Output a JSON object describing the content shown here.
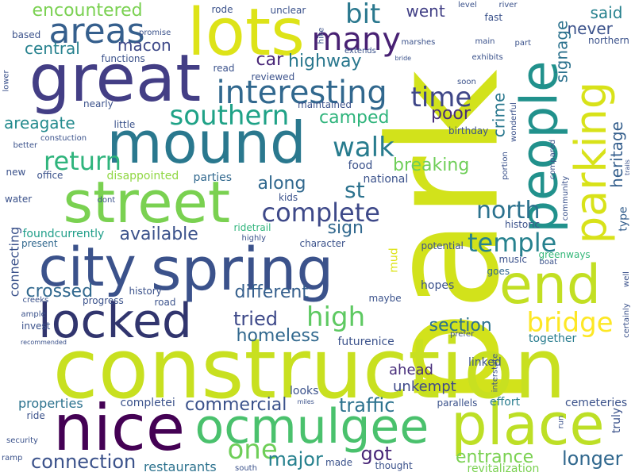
{
  "words": [
    {
      "text": "park",
      "color": "#d2e21b",
      "vertical": true
    },
    {
      "text": "construction",
      "color": "#c8e020",
      "vertical": false
    },
    {
      "text": "great",
      "color": "#433e85",
      "vertical": false
    },
    {
      "text": "lots",
      "color": "#dde318",
      "vertical": false
    },
    {
      "text": "mound",
      "color": "#2a788e",
      "vertical": false
    },
    {
      "text": "spring",
      "color": "#3b528b",
      "vertical": false
    },
    {
      "text": "city",
      "color": "#3b528b",
      "vertical": false
    },
    {
      "text": "street",
      "color": "#7ad151",
      "vertical": false
    },
    {
      "text": "nice",
      "color": "#440154",
      "vertical": false
    },
    {
      "text": "place",
      "color": "#bddf26",
      "vertical": false
    },
    {
      "text": "ocmulgee",
      "color": "#4ac16d",
      "vertical": false
    },
    {
      "text": "people",
      "color": "#21918c",
      "vertical": true
    },
    {
      "text": "end",
      "color": "#c2df23",
      "vertical": false
    },
    {
      "text": "locked",
      "color": "#31356e",
      "vertical": false
    },
    {
      "text": "parking",
      "color": "#d8e219",
      "vertical": true
    },
    {
      "text": "areas",
      "color": "#355f8d",
      "vertical": false
    },
    {
      "text": "many",
      "color": "#482173",
      "vertical": false
    },
    {
      "text": "interesting",
      "color": "#31688e",
      "vertical": false
    },
    {
      "text": "southern",
      "color": "#1fa287",
      "vertical": false
    },
    {
      "text": "complete",
      "color": "#3e4989",
      "vertical": false
    },
    {
      "text": "walk",
      "color": "#287c8e",
      "vertical": false
    },
    {
      "text": "return",
      "color": "#2fb47c",
      "vertical": false
    },
    {
      "text": "time",
      "color": "#3f4788",
      "vertical": false
    },
    {
      "text": "bit",
      "color": "#2a788e",
      "vertical": false
    },
    {
      "text": "bridge",
      "color": "#fde725",
      "vertical": false
    },
    {
      "text": "high",
      "color": "#5ec962",
      "vertical": false
    },
    {
      "text": "temple",
      "color": "#26818e",
      "vertical": false
    },
    {
      "text": "north",
      "color": "#2c728e",
      "vertical": false
    },
    {
      "text": "one",
      "color": "#6ece58",
      "vertical": false
    },
    {
      "text": "major",
      "color": "#26818e",
      "vertical": false
    },
    {
      "text": "connection",
      "color": "#3b528b",
      "vertical": false
    },
    {
      "text": "commercial",
      "color": "#3b528b",
      "vertical": false
    },
    {
      "text": "traffic",
      "color": "#2c728e",
      "vertical": false
    },
    {
      "text": "got",
      "color": "#482677",
      "vertical": false
    },
    {
      "text": "entrance",
      "color": "#7ad151",
      "vertical": false
    },
    {
      "text": "longer",
      "color": "#31688e",
      "vertical": false
    },
    {
      "text": "different",
      "color": "#355f8d",
      "vertical": false
    },
    {
      "text": "homeless",
      "color": "#31688e",
      "vertical": false
    },
    {
      "text": "tried",
      "color": "#3e4989",
      "vertical": false
    },
    {
      "text": "section",
      "color": "#2c728e",
      "vertical": false
    },
    {
      "text": "crossed",
      "color": "#31688e",
      "vertical": false
    },
    {
      "text": "available",
      "color": "#3b528b",
      "vertical": false
    },
    {
      "text": "along",
      "color": "#31688e",
      "vertical": false
    },
    {
      "text": "st",
      "color": "#2c728e",
      "vertical": false
    },
    {
      "text": "sign",
      "color": "#31688e",
      "vertical": false
    },
    {
      "text": "breaking",
      "color": "#6ece58",
      "vertical": false
    },
    {
      "text": "poor",
      "color": "#472d7b",
      "vertical": false
    },
    {
      "text": "camped",
      "color": "#2fb47c",
      "vertical": false
    },
    {
      "text": "areagate",
      "color": "#238a8d",
      "vertical": false
    },
    {
      "text": "central",
      "color": "#26818e",
      "vertical": false
    },
    {
      "text": "macon",
      "color": "#3e4989",
      "vertical": false
    },
    {
      "text": "car",
      "color": "#482677",
      "vertical": false
    },
    {
      "text": "highway",
      "color": "#2a788e",
      "vertical": false
    },
    {
      "text": "went",
      "color": "#424086",
      "vertical": false
    },
    {
      "text": "encountered",
      "color": "#7ad151",
      "vertical": false
    },
    {
      "text": "said",
      "color": "#26818e",
      "vertical": false
    },
    {
      "text": "never",
      "color": "#3b528b",
      "vertical": false
    },
    {
      "text": "signage",
      "color": "#2c728e",
      "vertical": true
    },
    {
      "text": "crime",
      "color": "#2a788e",
      "vertical": true
    },
    {
      "text": "heritage",
      "color": "#355f8d",
      "vertical": true
    },
    {
      "text": "ahead",
      "color": "#472d7b",
      "vertical": false
    },
    {
      "text": "unkempt",
      "color": "#3e4989",
      "vertical": false
    },
    {
      "text": "restaurants",
      "color": "#2c728e",
      "vertical": false
    },
    {
      "text": "properties",
      "color": "#2c728e",
      "vertical": false
    },
    {
      "text": "connecting",
      "color": "#3b528b",
      "vertical": true
    },
    {
      "text": "revitalization",
      "color": "#7ad151",
      "vertical": false
    },
    {
      "text": "cemeteries",
      "color": "#3b528b",
      "vertical": false
    },
    {
      "text": "truly",
      "color": "#3b528b",
      "vertical": true
    },
    {
      "text": "type",
      "color": "#355f8d",
      "vertical": true
    },
    {
      "text": "mud",
      "color": "#dde318",
      "vertical": true
    },
    {
      "text": "linked",
      "color": "#3b528b",
      "vertical": false
    },
    {
      "text": "effort",
      "color": "#287c8e",
      "vertical": false
    },
    {
      "text": "parallels",
      "color": "#3b528b",
      "vertical": false
    },
    {
      "text": "futurenice",
      "color": "#3b528b",
      "vertical": false
    },
    {
      "text": "together",
      "color": "#287c8e",
      "vertical": false
    },
    {
      "text": "looks",
      "color": "#3b528b",
      "vertical": false
    },
    {
      "text": "completei",
      "color": "#3b528b",
      "vertical": false
    },
    {
      "text": "disappointed",
      "color": "#90d743",
      "vertical": false
    },
    {
      "text": "parties",
      "color": "#31688e",
      "vertical": false
    },
    {
      "text": "food",
      "color": "#3b528b",
      "vertical": false
    },
    {
      "text": "national",
      "color": "#3b528b",
      "vertical": false
    },
    {
      "text": "kids",
      "color": "#3b528b",
      "vertical": false
    },
    {
      "text": "ridetrail",
      "color": "#2fb47c",
      "vertical": false
    },
    {
      "text": "foundcurrently",
      "color": "#1f9e89",
      "vertical": false
    },
    {
      "text": "present",
      "color": "#31688e",
      "vertical": false
    },
    {
      "text": "character",
      "color": "#3b528b",
      "vertical": false
    },
    {
      "text": "potential",
      "color": "#3b528b",
      "vertical": false
    },
    {
      "text": "historic",
      "color": "#3b528b",
      "vertical": false
    },
    {
      "text": "greenways",
      "color": "#35b779",
      "vertical": false
    },
    {
      "text": "music",
      "color": "#3b528b",
      "vertical": false
    },
    {
      "text": "goes",
      "color": "#31688e",
      "vertical": false
    },
    {
      "text": "hopes",
      "color": "#3b528b",
      "vertical": false
    },
    {
      "text": "maybe",
      "color": "#3b528b",
      "vertical": false
    },
    {
      "text": "history",
      "color": "#3b528b",
      "vertical": false
    },
    {
      "text": "progress",
      "color": "#3b528b",
      "vertical": false
    },
    {
      "text": "road",
      "color": "#3b528b",
      "vertical": false
    },
    {
      "text": "creeks",
      "color": "#3b528b",
      "vertical": false
    },
    {
      "text": "ample",
      "color": "#3b528b",
      "vertical": false
    },
    {
      "text": "invest",
      "color": "#3b528b",
      "vertical": false
    },
    {
      "text": "recommended",
      "color": "#3b528b",
      "vertical": false
    },
    {
      "text": "ride",
      "color": "#3b528b",
      "vertical": false
    },
    {
      "text": "miles",
      "color": "#3b528b",
      "vertical": false
    },
    {
      "text": "prefer",
      "color": "#3b528b",
      "vertical": false
    },
    {
      "text": "interstate",
      "color": "#3b528b",
      "vertical": true
    },
    {
      "text": "certainly",
      "color": "#3b528b",
      "vertical": true
    },
    {
      "text": "well",
      "color": "#3b528b",
      "vertical": true
    },
    {
      "text": "boat",
      "color": "#3b528b",
      "vertical": false
    },
    {
      "text": "run",
      "color": "#3b528b",
      "vertical": true
    },
    {
      "text": "thought",
      "color": "#3b528b",
      "vertical": false
    },
    {
      "text": "made",
      "color": "#3b528b",
      "vertical": false
    },
    {
      "text": "south",
      "color": "#3b528b",
      "vertical": false
    },
    {
      "text": "security",
      "color": "#3b528b",
      "vertical": false
    },
    {
      "text": "ramp",
      "color": "#3b528b",
      "vertical": false
    },
    {
      "text": "water",
      "color": "#3b528b",
      "vertical": false
    },
    {
      "text": "dont",
      "color": "#3b528b",
      "vertical": false
    },
    {
      "text": "highly",
      "color": "#3b528b",
      "vertical": false
    },
    {
      "text": "new",
      "color": "#3b528b",
      "vertical": false
    },
    {
      "text": "office",
      "color": "#3b528b",
      "vertical": false
    },
    {
      "text": "better",
      "color": "#3b528b",
      "vertical": false
    },
    {
      "text": "constuction",
      "color": "#3b528b",
      "vertical": false
    },
    {
      "text": "little",
      "color": "#3b528b",
      "vertical": false
    },
    {
      "text": "birthday",
      "color": "#3b528b",
      "vertical": false
    },
    {
      "text": "maintained",
      "color": "#3b528b",
      "vertical": false
    },
    {
      "text": "nearly",
      "color": "#3b528b",
      "vertical": false
    },
    {
      "text": "reviewed",
      "color": "#3b528b",
      "vertical": false
    },
    {
      "text": "read",
      "color": "#3b528b",
      "vertical": false
    },
    {
      "text": "functions",
      "color": "#3b528b",
      "vertical": false
    },
    {
      "text": "based",
      "color": "#3b528b",
      "vertical": false
    },
    {
      "text": "promise",
      "color": "#3b528b",
      "vertical": false
    },
    {
      "text": "rode",
      "color": "#3b528b",
      "vertical": false
    },
    {
      "text": "unclear",
      "color": "#3b528b",
      "vertical": false
    },
    {
      "text": "hike",
      "color": "#3b528b",
      "vertical": true
    },
    {
      "text": "extends",
      "color": "#3b528b",
      "vertical": false
    },
    {
      "text": "marshes",
      "color": "#3b528b",
      "vertical": false
    },
    {
      "text": "level",
      "color": "#3b528b",
      "vertical": false
    },
    {
      "text": "river",
      "color": "#3b528b",
      "vertical": false
    },
    {
      "text": "fast",
      "color": "#3b528b",
      "vertical": false
    },
    {
      "text": "main",
      "color": "#3b528b",
      "vertical": false
    },
    {
      "text": "part",
      "color": "#3b528b",
      "vertical": false
    },
    {
      "text": "exhibits",
      "color": "#3b528b",
      "vertical": false
    },
    {
      "text": "soon",
      "color": "#3b528b",
      "vertical": false
    },
    {
      "text": "wonderful",
      "color": "#3b528b",
      "vertical": true
    },
    {
      "text": "portion",
      "color": "#3b528b",
      "vertical": true
    },
    {
      "text": "compared",
      "color": "#3b528b",
      "vertical": true
    },
    {
      "text": "community",
      "color": "#3b528b",
      "vertical": true
    },
    {
      "text": "trails",
      "color": "#3b528b",
      "vertical": true
    },
    {
      "text": "northern",
      "color": "#3b528b",
      "vertical": false
    },
    {
      "text": "bride",
      "color": "#3b528b",
      "vertical": false
    },
    {
      "text": "lower",
      "color": "#3b528b",
      "vertical": true
    }
  ]
}
